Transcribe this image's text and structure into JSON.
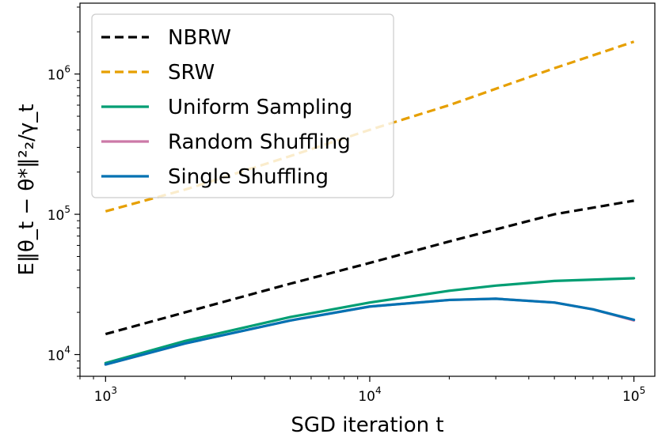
{
  "chart_data": {
    "type": "line",
    "xscale": "log",
    "yscale": "log",
    "xlabel": "SGD iteration t",
    "ylabel": "E‖θ_t − θ*‖²₂/γ_t",
    "xlim": [
      800,
      120000
    ],
    "ylim": [
      7000,
      3200000
    ],
    "x_ticks": [
      {
        "value": 1000,
        "base": "10",
        "exp": "3"
      },
      {
        "value": 10000,
        "base": "10",
        "exp": "4"
      },
      {
        "value": 100000,
        "base": "10",
        "exp": "5"
      }
    ],
    "y_ticks": [
      {
        "value": 10000,
        "base": "10",
        "exp": "4"
      },
      {
        "value": 100000,
        "base": "10",
        "exp": "5"
      },
      {
        "value": 1000000,
        "base": "10",
        "exp": "6"
      }
    ],
    "legend_position": "top-left",
    "series": [
      {
        "name": "NBRW",
        "color": "#000000",
        "dash": "dashed",
        "x": [
          1000,
          2000,
          5000,
          10000,
          20000,
          50000,
          100000
        ],
        "y": [
          14000,
          20000,
          32000,
          45000,
          64000,
          100000,
          125000
        ]
      },
      {
        "name": "SRW",
        "color": "#E69F00",
        "dash": "dashed",
        "x": [
          1000,
          2000,
          5000,
          10000,
          20000,
          50000,
          100000
        ],
        "y": [
          105000,
          150000,
          260000,
          400000,
          600000,
          1100000,
          1700000
        ]
      },
      {
        "name": "Uniform Sampling",
        "color": "#009E73",
        "dash": "solid",
        "x": [
          1000,
          2000,
          5000,
          10000,
          20000,
          30000,
          50000,
          100000
        ],
        "y": [
          8700,
          12500,
          18500,
          23500,
          28500,
          31000,
          33500,
          35000
        ]
      },
      {
        "name": "Random Shuffling",
        "color": "#CC79A7",
        "dash": "solid",
        "x": [
          1000,
          2000,
          5000,
          10000,
          20000,
          30000,
          50000,
          70000,
          100000
        ],
        "y": [
          8500,
          12000,
          17500,
          22000,
          24500,
          25000,
          23500,
          21000,
          17500
        ]
      },
      {
        "name": "Single Shuffling",
        "color": "#0072B2",
        "dash": "solid",
        "x": [
          1000,
          2000,
          5000,
          10000,
          20000,
          30000,
          50000,
          70000,
          100000
        ],
        "y": [
          8500,
          12000,
          17500,
          22000,
          24500,
          25000,
          23500,
          21000,
          17700
        ]
      }
    ]
  }
}
